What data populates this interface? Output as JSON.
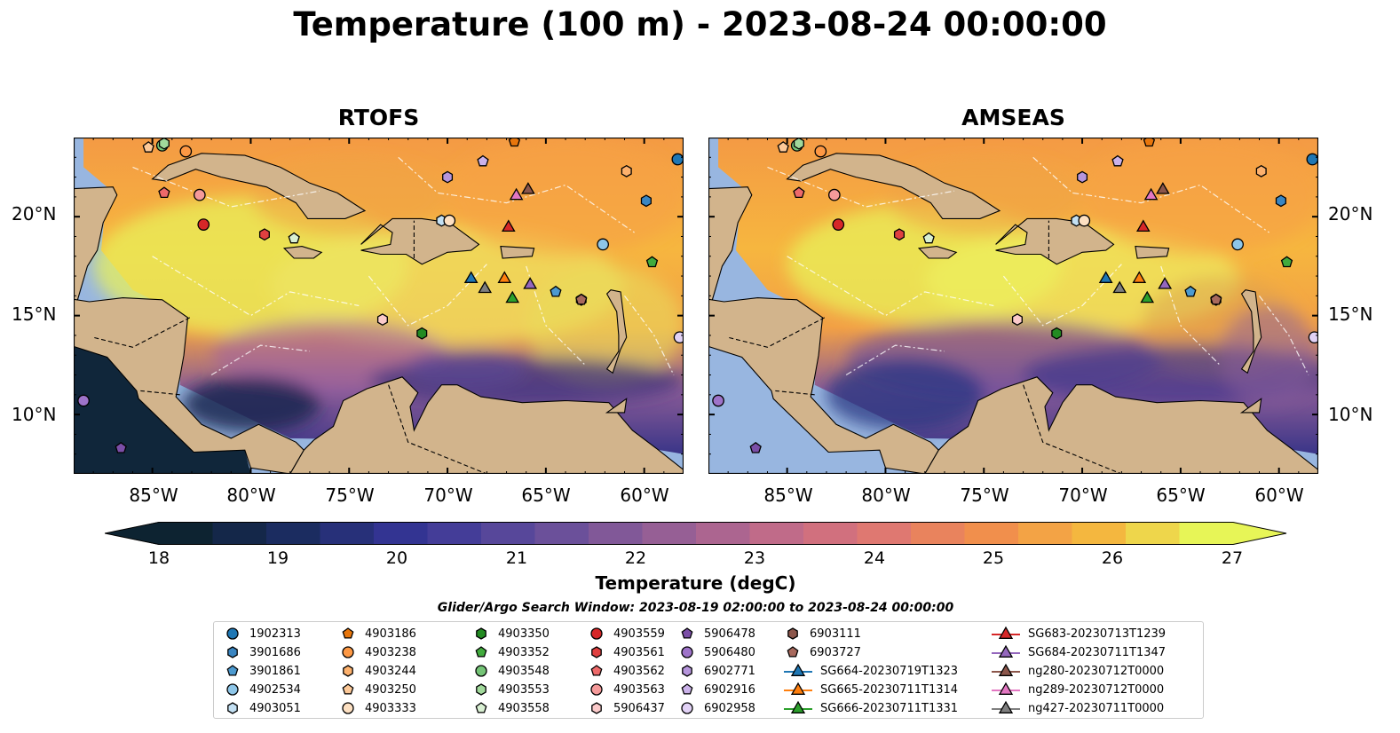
{
  "title": "Temperature (100 m) - 2023-08-24 00:00:00",
  "panels": [
    {
      "title": "RTOFS"
    },
    {
      "title": "AMSEAS"
    }
  ],
  "lat_labels": [
    "20°N",
    "15°N",
    "10°N"
  ],
  "lon_labels": [
    "85°W",
    "80°W",
    "75°W",
    "70°W",
    "65°W",
    "60°W"
  ],
  "map_extent": {
    "lon": [
      -89,
      -58
    ],
    "lat": [
      7,
      24
    ]
  },
  "colorbar": {
    "label": "Temperature (degC)",
    "ticks": [
      "18",
      "19",
      "20",
      "21",
      "22",
      "23",
      "24",
      "25",
      "26",
      "27"
    ],
    "range": [
      17.5,
      27.5
    ],
    "colormap": [
      "#0d2331",
      "#1c2c63",
      "#363597",
      "#5d4a9b",
      "#8a5c97",
      "#b8688e",
      "#dc7477",
      "#f08b4e",
      "#f5b43e",
      "#e7f557"
    ]
  },
  "legend": {
    "title": "Glider/Argo Search Window: 2023-08-19 02:00:00 to 2023-08-24 00:00:00",
    "items": [
      {
        "label": "1902313",
        "marker": "circle",
        "color": "#1f77b4"
      },
      {
        "label": "3901686",
        "marker": "hexagon",
        "color": "#3a86c2"
      },
      {
        "label": "3901861",
        "marker": "pentagon",
        "color": "#4c9ad0"
      },
      {
        "label": "4902534",
        "marker": "circle",
        "color": "#8ec6e8"
      },
      {
        "label": "4903051",
        "marker": "hexagon",
        "color": "#c3e0f3"
      },
      {
        "label": "4903186",
        "marker": "pentagon",
        "color": "#e8760c"
      },
      {
        "label": "4903238",
        "marker": "circle",
        "color": "#fd9844"
      },
      {
        "label": "4903244",
        "marker": "hexagon",
        "color": "#fdb16d"
      },
      {
        "label": "4903250",
        "marker": "pentagon",
        "color": "#fdc998"
      },
      {
        "label": "4903333",
        "marker": "circle",
        "color": "#fde0c2"
      },
      {
        "label": "4903350",
        "marker": "hexagon",
        "color": "#238b22"
      },
      {
        "label": "4903352",
        "marker": "pentagon",
        "color": "#41ab3d"
      },
      {
        "label": "4903548",
        "marker": "circle",
        "color": "#74c476"
      },
      {
        "label": "4903553",
        "marker": "hexagon",
        "color": "#a1d99b"
      },
      {
        "label": "4903558",
        "marker": "pentagon",
        "color": "#d9f0d3"
      },
      {
        "label": "4903559",
        "marker": "circle",
        "color": "#d62728"
      },
      {
        "label": "4903561",
        "marker": "hexagon",
        "color": "#e04040"
      },
      {
        "label": "4903562",
        "marker": "pentagon",
        "color": "#ee6a6a"
      },
      {
        "label": "4903563",
        "marker": "circle",
        "color": "#f59a9a"
      },
      {
        "label": "5906437",
        "marker": "hexagon",
        "color": "#fbcaca"
      },
      {
        "label": "5906478",
        "marker": "pentagon",
        "color": "#7b4ea7"
      },
      {
        "label": "5906480",
        "marker": "circle",
        "color": "#9e73c9"
      },
      {
        "label": "6902771",
        "marker": "hexagon",
        "color": "#b695dc"
      },
      {
        "label": "6902916",
        "marker": "pentagon",
        "color": "#cbb2ea"
      },
      {
        "label": "6902958",
        "marker": "circle",
        "color": "#e2d2f6"
      },
      {
        "label": "6903111",
        "marker": "hexagon",
        "color": "#8c564b"
      },
      {
        "label": "6903727",
        "marker": "pentagon",
        "color": "#a8695d"
      },
      {
        "label": "SG664-20230719T1323",
        "marker": "triangle-line",
        "color": "#1f77b4"
      },
      {
        "label": "SG665-20230711T1314",
        "marker": "triangle-line",
        "color": "#ff7f0e"
      },
      {
        "label": "SG666-20230711T1331",
        "marker": "triangle-line",
        "color": "#2ca02c"
      },
      {
        "label": "SG683-20230713T1239",
        "marker": "triangle-line",
        "color": "#d62728"
      },
      {
        "label": "SG684-20230711T1347",
        "marker": "triangle-line",
        "color": "#9467bd"
      },
      {
        "label": "ng280-20230712T0000",
        "marker": "triangle-line",
        "color": "#8c564b"
      },
      {
        "label": "ng289-20230712T0000",
        "marker": "triangle-line",
        "color": "#e377c2"
      },
      {
        "label": "ng427-20230711T0000",
        "marker": "triangle-line",
        "color": "#7f7f7f"
      }
    ]
  },
  "observations": [
    {
      "id": "1902313",
      "lon": -58.3,
      "lat": 22.9
    },
    {
      "id": "3901686",
      "lon": -59.9,
      "lat": 20.8
    },
    {
      "id": "3901861",
      "lon": -64.5,
      "lat": 16.2
    },
    {
      "id": "4902534",
      "lon": -62.1,
      "lat": 18.6
    },
    {
      "id": "4903051",
      "lon": -70.3,
      "lat": 19.8
    },
    {
      "id": "4903186",
      "lon": -66.6,
      "lat": 23.8
    },
    {
      "id": "4903238",
      "lon": -83.3,
      "lat": 23.3
    },
    {
      "id": "4903244",
      "lon": -60.9,
      "lat": 22.3
    },
    {
      "id": "4903250",
      "lon": -85.2,
      "lat": 23.5
    },
    {
      "id": "4903333",
      "lon": -69.9,
      "lat": 19.8
    },
    {
      "id": "4903350",
      "lon": -71.3,
      "lat": 14.1
    },
    {
      "id": "4903352",
      "lon": -59.6,
      "lat": 17.7
    },
    {
      "id": "4903548",
      "lon": -84.5,
      "lat": 23.6
    },
    {
      "id": "4903553",
      "lon": -84.4,
      "lat": 23.7
    },
    {
      "id": "4903558",
      "lon": -77.8,
      "lat": 18.9
    },
    {
      "id": "4903559",
      "lon": -82.4,
      "lat": 19.6
    },
    {
      "id": "4903561",
      "lon": -79.3,
      "lat": 19.1
    },
    {
      "id": "4903562",
      "lon": -84.4,
      "lat": 21.2
    },
    {
      "id": "4903563",
      "lon": -82.6,
      "lat": 21.1
    },
    {
      "id": "5906437",
      "lon": -73.3,
      "lat": 14.8
    },
    {
      "id": "5906478",
      "lon": -86.6,
      "lat": 8.3
    },
    {
      "id": "5906480",
      "lon": -88.5,
      "lat": 10.7
    },
    {
      "id": "6902771",
      "lon": -70.0,
      "lat": 22.0
    },
    {
      "id": "6902916",
      "lon": -68.2,
      "lat": 22.8
    },
    {
      "id": "6902958",
      "lon": -58.2,
      "lat": 13.9
    },
    {
      "id": "6903111",
      "lon": -63.2,
      "lat": 15.8
    },
    {
      "id": "6903727",
      "lon": -63.2,
      "lat": 15.8
    },
    {
      "id": "SG664-20230719T1323",
      "lon": -68.8,
      "lat": 16.9
    },
    {
      "id": "SG665-20230711T1314",
      "lon": -67.1,
      "lat": 16.9
    },
    {
      "id": "SG666-20230711T1331",
      "lon": -66.7,
      "lat": 15.9
    },
    {
      "id": "SG683-20230713T1239",
      "lon": -66.9,
      "lat": 19.5
    },
    {
      "id": "SG684-20230711T1347",
      "lon": -65.8,
      "lat": 16.6
    },
    {
      "id": "ng280-20230712T0000",
      "lon": -65.9,
      "lat": 21.4
    },
    {
      "id": "ng289-20230712T0000",
      "lon": -66.5,
      "lat": 21.1
    },
    {
      "id": "ng427-20230711T0000",
      "lon": -68.1,
      "lat": 16.4
    }
  ]
}
